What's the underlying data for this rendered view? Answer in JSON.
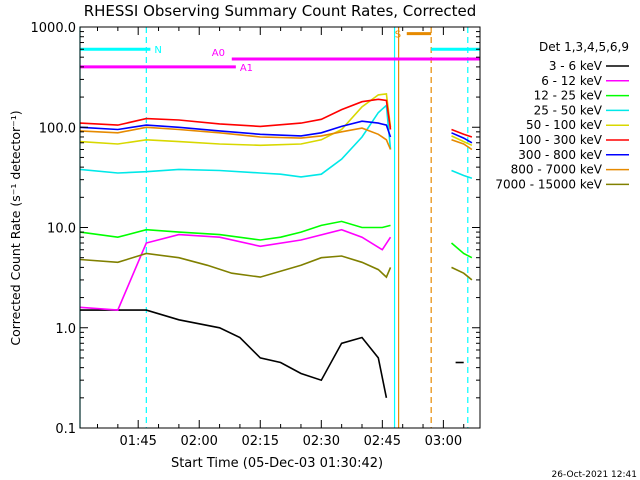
{
  "chart_data": {
    "type": "line",
    "title": "RHESSI Observing Summary Count Rates, Corrected",
    "xlabel": "Start Time (05-Dec-03 01:30:42)",
    "ylabel": "Corrected Count Rate (s⁻¹ detector⁻¹)",
    "yscale": "log",
    "ylim": [
      0.1,
      1000
    ],
    "xlim": [
      "01:30:42",
      "03:09:00"
    ],
    "yticks": [
      "0.1",
      "1.0",
      "10.0",
      "100.0",
      "1000.0"
    ],
    "xticks": [
      "01:45",
      "02:00",
      "02:15",
      "02:30",
      "02:45",
      "03:00"
    ],
    "grid": false,
    "legend_position": "right",
    "legend_title": "Det 1,3,4,5,6,9",
    "footer": "26-Oct-2021 12:41",
    "series": [
      {
        "name": "3 - 6 keV",
        "color": "#000000",
        "x": [
          "01:30:42",
          "01:40",
          "01:47",
          "01:55",
          "02:05",
          "02:10",
          "02:15",
          "02:20",
          "02:25",
          "02:30",
          "02:35",
          "02:40",
          "02:44",
          "02:46"
        ],
        "y": [
          1.5,
          1.5,
          1.5,
          1.2,
          1.0,
          0.8,
          0.5,
          0.45,
          0.35,
          0.3,
          0.7,
          0.8,
          0.5,
          0.2
        ],
        "gaps": [
          {
            "x": [
              "03:03",
              "03:05"
            ],
            "y": [
              0.45,
              0.45
            ]
          }
        ]
      },
      {
        "name": "6 - 12 keV",
        "color": "#ff00ff",
        "x": [
          "01:30:42",
          "01:40",
          "01:47",
          "01:55",
          "02:05",
          "02:15",
          "02:25",
          "02:35",
          "02:40",
          "02:45",
          "02:47"
        ],
        "y": [
          1.6,
          1.5,
          7.0,
          8.5,
          8.0,
          6.5,
          7.5,
          9.5,
          8.0,
          6.0,
          8.0
        ]
      },
      {
        "name": "12 - 25 keV",
        "color": "#00ff00",
        "x": [
          "01:30:42",
          "01:40",
          "01:47",
          "01:55",
          "02:05",
          "02:15",
          "02:20",
          "02:25",
          "02:30",
          "02:35",
          "02:40",
          "02:45",
          "02:47"
        ],
        "y": [
          9.0,
          8.0,
          9.5,
          9.0,
          8.5,
          7.5,
          8.0,
          9.0,
          10.5,
          11.5,
          10.0,
          10.0,
          10.5
        ],
        "gaps": [
          {
            "x": [
              "03:02",
              "03:05",
              "03:07"
            ],
            "y": [
              7.0,
              5.5,
              5.0
            ]
          }
        ]
      },
      {
        "name": "25 - 50 keV",
        "color": "#00e8e8",
        "x": [
          "01:30:42",
          "01:40",
          "01:47",
          "01:55",
          "02:05",
          "02:15",
          "02:20",
          "02:25",
          "02:30",
          "02:35",
          "02:40",
          "02:44",
          "02:46",
          "02:47"
        ],
        "y": [
          38,
          35,
          36,
          38,
          37,
          35,
          34,
          32,
          34,
          48,
          80,
          140,
          165,
          60
        ],
        "gaps": [
          {
            "x": [
              "03:02",
              "03:05",
              "03:07"
            ],
            "y": [
              37,
              33,
              31
            ]
          }
        ]
      },
      {
        "name": "50 - 100 keV",
        "color": "#d8d800",
        "x": [
          "01:30:42",
          "01:40",
          "01:47",
          "01:55",
          "02:05",
          "02:15",
          "02:25",
          "02:30",
          "02:35",
          "02:40",
          "02:44",
          "02:46",
          "02:47"
        ],
        "y": [
          72,
          68,
          75,
          72,
          68,
          66,
          68,
          75,
          95,
          160,
          210,
          215,
          100
        ],
        "gaps": [
          {
            "x": [
              "03:02",
              "03:05",
              "03:07"
            ],
            "y": [
              82,
              72,
              66
            ]
          }
        ]
      },
      {
        "name": "100 - 300 keV",
        "color": "#ff0000",
        "x": [
          "01:30:42",
          "01:40",
          "01:47",
          "01:55",
          "02:05",
          "02:15",
          "02:25",
          "02:30",
          "02:35",
          "02:40",
          "02:44",
          "02:46",
          "02:47"
        ],
        "y": [
          110,
          105,
          122,
          118,
          108,
          102,
          110,
          120,
          150,
          180,
          190,
          185,
          95
        ],
        "gaps": [
          {
            "x": [
              "03:02",
              "03:05",
              "03:07"
            ],
            "y": [
              95,
              85,
              80
            ]
          }
        ]
      },
      {
        "name": "300 - 800 keV",
        "color": "#0000ff",
        "x": [
          "01:30:42",
          "01:40",
          "01:47",
          "01:55",
          "02:05",
          "02:15",
          "02:25",
          "02:30",
          "02:35",
          "02:40",
          "02:44",
          "02:46",
          "02:47"
        ],
        "y": [
          100,
          95,
          105,
          100,
          92,
          85,
          82,
          88,
          102,
          115,
          110,
          105,
          80
        ],
        "gaps": [
          {
            "x": [
              "03:02",
              "03:05",
              "03:07"
            ],
            "y": [
              88,
              78,
              70
            ]
          }
        ]
      },
      {
        "name": "800 - 7000 keV",
        "color": "#e68a00",
        "x": [
          "01:30:42",
          "01:40",
          "01:47",
          "01:55",
          "02:05",
          "02:15",
          "02:25",
          "02:30",
          "02:35",
          "02:40",
          "02:44",
          "02:46",
          "02:47"
        ],
        "y": [
          92,
          88,
          100,
          95,
          88,
          80,
          78,
          82,
          90,
          98,
          85,
          75,
          60
        ],
        "gaps": [
          {
            "x": [
              "03:02",
              "03:05",
              "03:07"
            ],
            "y": [
              75,
              68,
              60
            ]
          }
        ]
      },
      {
        "name": "7000 - 15000 keV",
        "color": "#808000",
        "x": [
          "01:30:42",
          "01:40",
          "01:47",
          "01:55",
          "02:02",
          "02:08",
          "02:15",
          "02:25",
          "02:30",
          "02:35",
          "02:40",
          "02:44",
          "02:46",
          "02:47"
        ],
        "y": [
          4.8,
          4.5,
          5.5,
          5.0,
          4.2,
          3.5,
          3.2,
          4.2,
          5.0,
          5.2,
          4.5,
          3.8,
          3.2,
          4.0
        ],
        "gaps": [
          {
            "x": [
              "03:02",
              "03:05",
              "03:07"
            ],
            "y": [
              4.0,
              3.5,
              3.0
            ]
          }
        ]
      }
    ],
    "annotations": [
      {
        "text": "N",
        "type": "bar",
        "color": "#00ffff",
        "x": [
          "01:30:42",
          "01:48"
        ],
        "y": 600
      },
      {
        "text": "A0",
        "type": "bar",
        "color": "#ff00ff",
        "x": [
          "02:08",
          "03:09"
        ],
        "y": 480
      },
      {
        "text": "A1",
        "type": "bar",
        "color": "#ff00ff",
        "x": [
          "01:30:42",
          "02:09"
        ],
        "y": 400
      },
      {
        "text": "S",
        "type": "bar",
        "color": "#e68a00",
        "x": [
          "02:51",
          "02:57"
        ],
        "y": 860
      },
      {
        "text": "",
        "type": "bar",
        "color": "#00ffff",
        "x": [
          "02:57",
          "03:09"
        ],
        "y": 600
      }
    ],
    "vlines": [
      {
        "x": "01:30:42",
        "color": "#00ffff",
        "style": "solid"
      },
      {
        "x": "01:47",
        "color": "#00ffff",
        "style": "dashed"
      },
      {
        "x": "02:48",
        "color": "#00ffff",
        "style": "solid"
      },
      {
        "x": "02:49",
        "color": "#e68a00",
        "style": "solid"
      },
      {
        "x": "02:57",
        "color": "#e68a00",
        "style": "dashed"
      },
      {
        "x": "03:06",
        "color": "#00ffff",
        "style": "dashed"
      }
    ]
  }
}
